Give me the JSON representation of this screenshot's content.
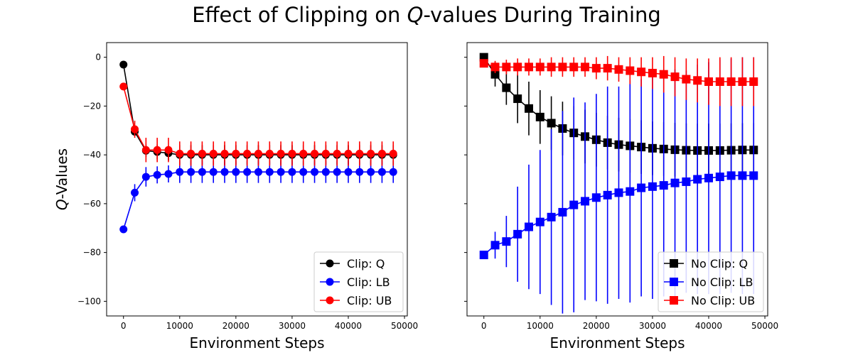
{
  "title": {
    "prefix": "Effect of Clipping on ",
    "italic": "Q",
    "suffix": "-values During Training"
  },
  "chart_data": [
    {
      "type": "line",
      "panel": "left",
      "xlabel": "Environment Steps",
      "ylabel_italic": "Q",
      "ylabel_suffix": "-Values",
      "xlim": [
        -3000,
        50500
      ],
      "ylim": [
        -106,
        6
      ],
      "xticks": [
        0,
        10000,
        20000,
        30000,
        40000,
        50000
      ],
      "yticks": [
        0,
        -20,
        -40,
        -60,
        -80,
        -100
      ],
      "ytick_labels_shown": true,
      "grid": false,
      "legend_position": "lower-right",
      "marker": "circle",
      "x": [
        0,
        2000,
        4000,
        6000,
        8000,
        10000,
        12000,
        14000,
        16000,
        18000,
        20000,
        22000,
        24000,
        26000,
        28000,
        30000,
        32000,
        34000,
        36000,
        38000,
        40000,
        42000,
        44000,
        46000,
        48000
      ],
      "series": [
        {
          "name": "Clip: Q",
          "color": "#000000",
          "values": [
            -3,
            -30.5,
            -38.3,
            -38.8,
            -39.3,
            -40,
            -40,
            -40,
            -40,
            -40,
            -40,
            -40,
            -40,
            -40,
            -40,
            -40,
            -40,
            -40,
            -40,
            -40,
            -40,
            -40,
            -40,
            -40,
            -40
          ],
          "errors": [
            0,
            1.5,
            2.5,
            3,
            3,
            4,
            4,
            4,
            4,
            4,
            4,
            4,
            4,
            4,
            4,
            4,
            4,
            4,
            4,
            4,
            4,
            4,
            4,
            4,
            4
          ]
        },
        {
          "name": "Clip: LB",
          "color": "#0000ff",
          "values": [
            -70.5,
            -55.5,
            -49,
            -48.2,
            -47.8,
            -47,
            -47,
            -47,
            -47,
            -47,
            -47,
            -47,
            -47,
            -47,
            -47,
            -47,
            -47,
            -47,
            -47,
            -47,
            -47,
            -47,
            -47,
            -47,
            -47
          ],
          "errors": [
            0,
            3.5,
            4,
            3.5,
            3.5,
            4.5,
            4.5,
            4.5,
            4.5,
            4.5,
            4.5,
            4.5,
            4.5,
            4.5,
            4.5,
            4.5,
            4.5,
            4.5,
            4.5,
            4.5,
            4.5,
            4.5,
            4.5,
            4.5,
            4.5
          ]
        },
        {
          "name": "Clip: UB",
          "color": "#ff0000",
          "values": [
            -12,
            -29.5,
            -38,
            -38,
            -38,
            -39.5,
            -39.5,
            -39.5,
            -39.5,
            -39.5,
            -39.5,
            -39.5,
            -39.5,
            -39.5,
            -39.5,
            -39.5,
            -39.5,
            -39.5,
            -39.5,
            -39.5,
            -39.5,
            -39.5,
            -39.5,
            -39.5,
            -39.5
          ],
          "errors": [
            0,
            3.5,
            5,
            5,
            5,
            5,
            5,
            5,
            5,
            5,
            5,
            5,
            5,
            5,
            5,
            5,
            5,
            5,
            5,
            5,
            5,
            5,
            5,
            5,
            5
          ]
        }
      ]
    },
    {
      "type": "line",
      "panel": "right",
      "xlabel": "Environment Steps",
      "xlim": [
        -3000,
        50500
      ],
      "ylim": [
        -106,
        6
      ],
      "xticks": [
        0,
        10000,
        20000,
        30000,
        40000,
        50000
      ],
      "yticks": [
        0,
        -20,
        -40,
        -60,
        -80,
        -100
      ],
      "ytick_labels_shown": false,
      "grid": false,
      "legend_position": "lower-right",
      "marker": "square",
      "x": [
        0,
        2000,
        4000,
        6000,
        8000,
        10000,
        12000,
        14000,
        16000,
        18000,
        20000,
        22000,
        24000,
        26000,
        28000,
        30000,
        32000,
        34000,
        36000,
        38000,
        40000,
        42000,
        44000,
        46000,
        48000
      ],
      "series": [
        {
          "name": "No Clip: Q",
          "color": "#000000",
          "values": [
            0,
            -7,
            -12.5,
            -17,
            -21,
            -24.5,
            -27,
            -29.2,
            -31,
            -32.5,
            -33.8,
            -35,
            -35.8,
            -36.3,
            -36.8,
            -37.3,
            -37.6,
            -37.9,
            -38.1,
            -38.2,
            -38.2,
            -38.2,
            -38.1,
            -38,
            -38
          ],
          "errors": [
            0,
            5,
            7,
            10,
            11,
            11,
            11,
            11,
            11,
            11,
            11,
            11,
            11,
            11,
            11,
            11,
            11,
            11,
            11,
            11,
            11,
            11,
            11,
            11,
            11
          ]
        },
        {
          "name": "No Clip: LB",
          "color": "#0000ff",
          "values": [
            -81,
            -77,
            -75.5,
            -72.5,
            -69.5,
            -67.5,
            -65.5,
            -63.5,
            -60.5,
            -59,
            -57.5,
            -56.5,
            -55.5,
            -55,
            -53.5,
            -53,
            -52.5,
            -51.5,
            -51,
            -50,
            -49.5,
            -49,
            -48.5,
            -48.5,
            -48.5
          ],
          "errors": [
            0,
            5.5,
            10.5,
            19.5,
            25.5,
            29.5,
            36,
            41.5,
            44,
            40.5,
            42.5,
            44.5,
            43.5,
            45.5,
            44.5,
            46,
            45.5,
            46.5,
            45.5,
            47,
            47.5,
            48,
            48,
            48.5,
            48.5
          ]
        },
        {
          "name": "No Clip: UB",
          "color": "#ff0000",
          "values": [
            -2.5,
            -4,
            -4,
            -4,
            -4,
            -4,
            -4,
            -4,
            -4,
            -4,
            -4.5,
            -4.5,
            -5,
            -5.5,
            -6,
            -6.5,
            -7,
            -8,
            -9,
            -9.5,
            -10,
            -10,
            -10,
            -10,
            -10
          ],
          "errors": [
            0,
            2.5,
            3,
            3.5,
            3.5,
            3.5,
            4,
            4,
            4,
            4,
            4.5,
            5,
            5,
            5.5,
            6,
            6.5,
            7.5,
            8,
            8.5,
            9,
            9.5,
            10,
            10,
            10,
            10
          ]
        }
      ]
    }
  ]
}
